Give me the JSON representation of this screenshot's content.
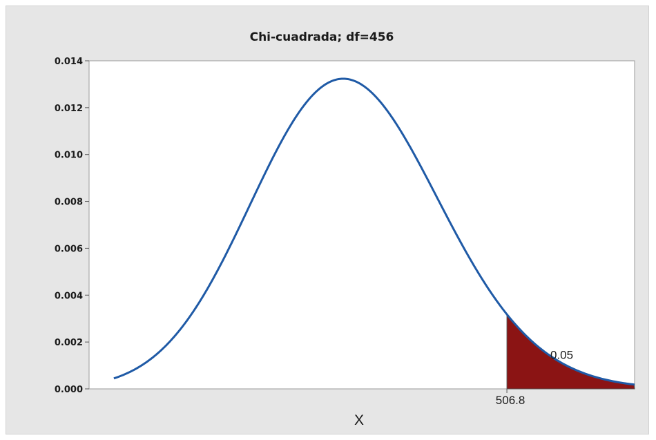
{
  "chart_data": {
    "type": "area",
    "title": "Chi-cuadrada; df=456",
    "xlabel": "X",
    "ylabel": "",
    "distribution": "chi-square",
    "df": 456,
    "xlim": [
      372,
      548
    ],
    "ylim": [
      0,
      0.014
    ],
    "yticks": [
      "0.000",
      "0.002",
      "0.004",
      "0.008",
      "0.010",
      "0.012",
      "0.014"
    ],
    "ytick_values": [
      0,
      0.002,
      0.004,
      0.008,
      0.01,
      0.012,
      0.014
    ],
    "ytick_extra": {
      "label": "0.006",
      "value": 0.006
    },
    "critical_value": 506.8,
    "critical_label": "506.8",
    "shaded_area": 0.05,
    "shaded_area_label": "0.05",
    "grid": false,
    "colors": {
      "curve": "#1f5aa6",
      "shade": "#8b1414",
      "plot_bg": "#ffffff",
      "frame_bg": "#e6e6e6"
    }
  }
}
